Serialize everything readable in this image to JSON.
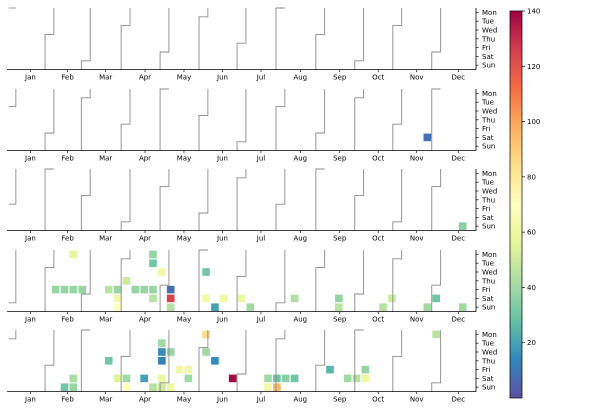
{
  "chart_data": {
    "type": "heatmap",
    "title": "",
    "months": [
      "Jan",
      "Feb",
      "Mar",
      "Apr",
      "May",
      "Jun",
      "Jul",
      "Aug",
      "Sep",
      "Oct",
      "Nov",
      "Dec"
    ],
    "weekdays": [
      "Mon",
      "Tue",
      "Wed",
      "Thu",
      "Fri",
      "Sat",
      "Sun"
    ],
    "colormap": "Spectral_r",
    "colorbar": {
      "min": 0,
      "max": 140,
      "ticks": [
        20,
        40,
        60,
        80,
        100,
        120,
        140
      ]
    },
    "panels": [
      {
        "cells": []
      },
      {
        "cells": [
          {
            "week": 47,
            "day": 5,
            "value": 8
          }
        ]
      },
      {
        "cells": [
          {
            "week": 51,
            "day": 6,
            "value": 35
          }
        ]
      },
      {
        "cells": [
          {
            "week": 5,
            "day": 4,
            "value": 38
          },
          {
            "week": 6,
            "day": 4,
            "value": 38
          },
          {
            "week": 7,
            "day": 4,
            "value": 38
          },
          {
            "week": 8,
            "day": 4,
            "value": 38
          },
          {
            "week": 7,
            "day": 0,
            "value": 58
          },
          {
            "week": 11,
            "day": 4,
            "value": 45
          },
          {
            "week": 12,
            "day": 4,
            "value": 38
          },
          {
            "week": 12,
            "day": 5,
            "value": 62
          },
          {
            "week": 12,
            "day": 6,
            "value": 70
          },
          {
            "week": 13,
            "day": 3,
            "value": 50
          },
          {
            "week": 14,
            "day": 4,
            "value": 38
          },
          {
            "week": 15,
            "day": 4,
            "value": 38
          },
          {
            "week": 16,
            "day": 0,
            "value": 38
          },
          {
            "week": 16,
            "day": 1,
            "value": 30
          },
          {
            "week": 16,
            "day": 4,
            "value": 38
          },
          {
            "week": 16,
            "day": 5,
            "value": 45
          },
          {
            "week": 17,
            "day": 2,
            "value": 62
          },
          {
            "week": 18,
            "day": 4,
            "value": 8
          },
          {
            "week": 18,
            "day": 5,
            "value": 125
          },
          {
            "week": 18,
            "day": 6,
            "value": 44
          },
          {
            "week": 22,
            "day": 2,
            "value": 30
          },
          {
            "week": 22,
            "day": 5,
            "value": 62
          },
          {
            "week": 23,
            "day": 6,
            "value": 20
          },
          {
            "week": 24,
            "day": 5,
            "value": 62
          },
          {
            "week": 26,
            "day": 5,
            "value": 60
          },
          {
            "week": 27,
            "day": 6,
            "value": 40
          },
          {
            "week": 32,
            "day": 5,
            "value": 44
          },
          {
            "week": 37,
            "day": 5,
            "value": 38
          },
          {
            "week": 37,
            "day": 6,
            "value": 45
          },
          {
            "week": 42,
            "day": 6,
            "value": 45
          },
          {
            "week": 43,
            "day": 5,
            "value": 50
          },
          {
            "week": 47,
            "day": 6,
            "value": 40
          },
          {
            "week": 48,
            "day": 5,
            "value": 30
          },
          {
            "week": 51,
            "day": 6,
            "value": 40
          }
        ]
      },
      {
        "cells": [
          {
            "week": 6,
            "day": 6,
            "value": 30
          },
          {
            "week": 7,
            "day": 5,
            "value": 42
          },
          {
            "week": 7,
            "day": 6,
            "value": 38
          },
          {
            "week": 11,
            "day": 3,
            "value": 30
          },
          {
            "week": 12,
            "day": 5,
            "value": 55
          },
          {
            "week": 13,
            "day": 5,
            "value": 40
          },
          {
            "week": 13,
            "day": 6,
            "value": 70
          },
          {
            "week": 15,
            "day": 5,
            "value": 20
          },
          {
            "week": 16,
            "day": 6,
            "value": 45
          },
          {
            "week": 17,
            "day": 1,
            "value": 40
          },
          {
            "week": 17,
            "day": 2,
            "value": 15
          },
          {
            "week": 17,
            "day": 3,
            "value": 12
          },
          {
            "week": 17,
            "day": 5,
            "value": 60
          },
          {
            "week": 17,
            "day": 6,
            "value": 50
          },
          {
            "week": 18,
            "day": 6,
            "value": 60
          },
          {
            "week": 18,
            "day": 2,
            "value": 38
          },
          {
            "week": 19,
            "day": 4,
            "value": 62
          },
          {
            "week": 20,
            "day": 4,
            "value": 62
          },
          {
            "week": 20,
            "day": 5,
            "value": 40
          },
          {
            "week": 22,
            "day": 0,
            "value": 85
          },
          {
            "week": 22,
            "day": 2,
            "value": 40
          },
          {
            "week": 23,
            "day": 3,
            "value": 15
          },
          {
            "week": 25,
            "day": 5,
            "value": 138
          },
          {
            "week": 29,
            "day": 5,
            "value": 40
          },
          {
            "week": 30,
            "day": 5,
            "value": 30
          },
          {
            "week": 31,
            "day": 5,
            "value": 35
          },
          {
            "week": 32,
            "day": 5,
            "value": 30
          },
          {
            "week": 30,
            "day": 6,
            "value": 95
          },
          {
            "week": 29,
            "day": 6,
            "value": 62
          },
          {
            "week": 36,
            "day": 4,
            "value": 25
          },
          {
            "week": 38,
            "day": 5,
            "value": 40
          },
          {
            "week": 39,
            "day": 5,
            "value": 45
          },
          {
            "week": 40,
            "day": 5,
            "value": 60
          },
          {
            "week": 40,
            "day": 4,
            "value": 38
          },
          {
            "week": 48,
            "day": 0,
            "value": 45
          }
        ]
      }
    ]
  }
}
